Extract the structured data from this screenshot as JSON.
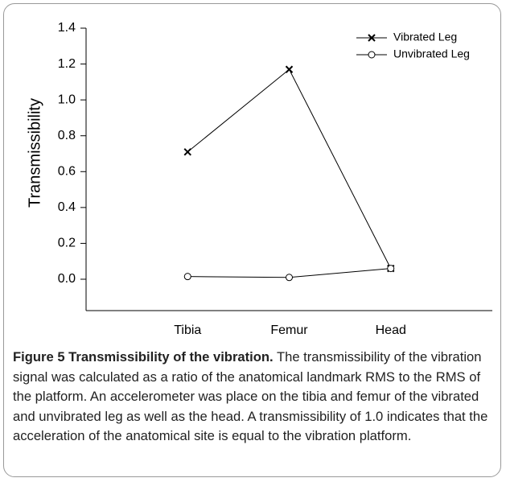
{
  "chart_data": {
    "type": "line",
    "ylabel": "Transmissibility",
    "categories": [
      "Tibia",
      "Femur",
      "Head"
    ],
    "series": [
      {
        "name": "Vibrated Leg",
        "color": "#000000",
        "marker": "x",
        "values": [
          0.71,
          1.17,
          0.06
        ]
      },
      {
        "name": "Unvibrated Leg",
        "color": "#000000",
        "marker": "circle",
        "values": [
          0.015,
          0.01,
          0.06
        ]
      }
    ],
    "ylim": [
      -0.175,
      1.4
    ],
    "yticks": [
      {
        "value": 0,
        "label": "0.0"
      },
      0.2,
      0.4,
      0.6,
      0.8,
      {
        "value": 1,
        "label": "1.0"
      },
      1.2,
      1.4
    ],
    "legend": "upper right",
    "caption_title": "Figure 5 Transmissibility of the vibration.",
    "caption_text": "The transmissibility of the vibration signal was calculated as a ratio of the anatomical landmark RMS to the RMS of the platform. An accelerometer was place on the tibia and femur of the vibrated and unvibrated leg as well as the head. A transmissibility of 1.0 indicates that the acceleration of the anatomical site is equal to the vibration platform."
  }
}
